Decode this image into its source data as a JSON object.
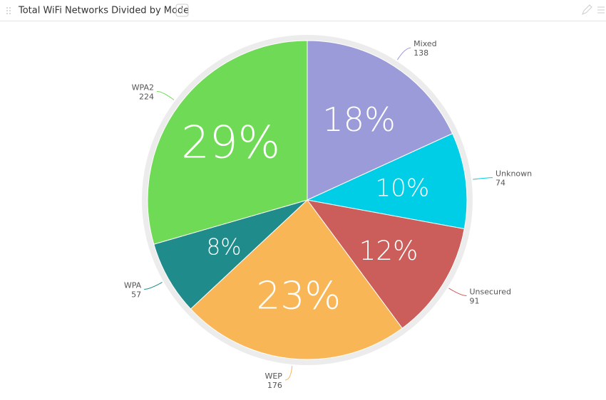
{
  "chart_data": {
    "type": "pie",
    "title": "Total WiFi Networks Divided by Mode",
    "categories": [
      "Mixed",
      "Unknown",
      "Unsecured",
      "WEP",
      "WPA",
      "WPA2"
    ],
    "values": [
      138,
      74,
      91,
      176,
      57,
      224
    ],
    "percent_labels": [
      "18%",
      "10%",
      "12%",
      "23%",
      "8%",
      "29%"
    ],
    "colors": [
      "#9c9bd9",
      "#00cde6",
      "#cb5d5a",
      "#f9b656",
      "#1f8b8b",
      "#6fda55"
    ]
  }
}
